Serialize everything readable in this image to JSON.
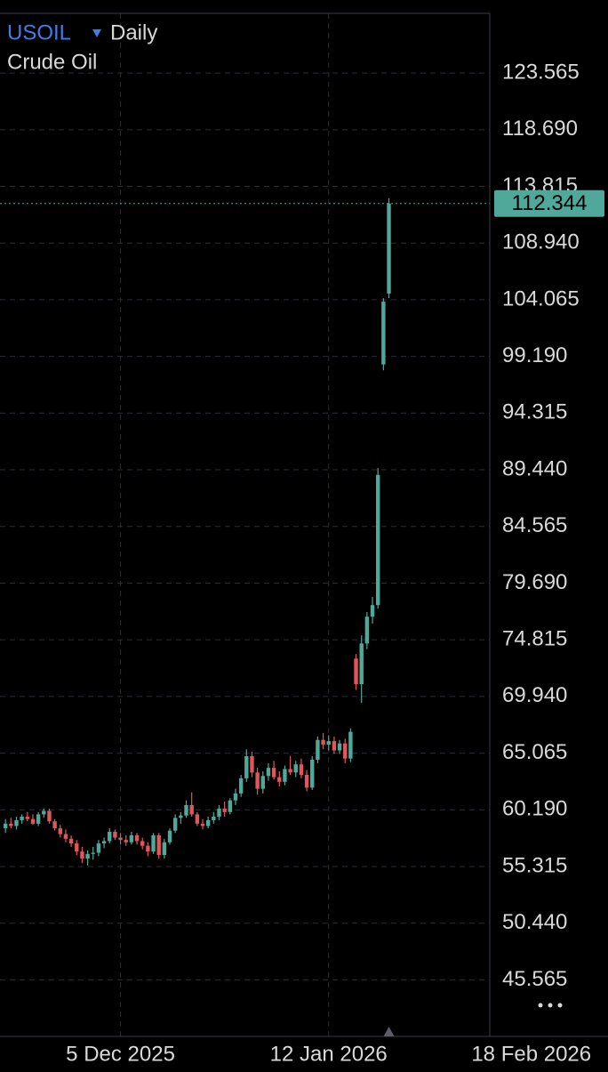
{
  "chart_data": {
    "type": "candlestick",
    "symbol": "USOIL",
    "interval": "Daily",
    "title": "Crude Oil",
    "x": [
      "2025-11-14",
      "2025-11-15",
      "2025-11-16",
      "2025-11-17",
      "2025-11-18",
      "2025-11-19",
      "2025-11-20",
      "2025-11-21",
      "2025-11-22",
      "2025-11-23",
      "2025-11-24",
      "2025-11-25",
      "2025-11-26",
      "2025-11-27",
      "2025-11-28",
      "2025-11-29",
      "2025-11-30",
      "2025-12-01",
      "2025-12-02",
      "2025-12-03",
      "2025-12-04",
      "2025-12-05",
      "2025-12-06",
      "2025-12-07",
      "2025-12-08",
      "2025-12-09",
      "2025-12-10",
      "2025-12-11",
      "2025-12-12",
      "2025-12-13",
      "2025-12-14",
      "2025-12-15",
      "2025-12-16",
      "2025-12-17",
      "2025-12-18",
      "2025-12-19",
      "2025-12-20",
      "2025-12-21",
      "2025-12-22",
      "2025-12-23",
      "2025-12-24",
      "2025-12-25",
      "2025-12-26",
      "2025-12-27",
      "2025-12-28",
      "2025-12-29",
      "2025-12-30",
      "2025-12-31",
      "2026-01-01",
      "2026-01-02",
      "2026-01-03",
      "2026-01-04",
      "2026-01-05",
      "2026-01-06",
      "2026-01-07",
      "2026-01-08",
      "2026-01-09",
      "2026-01-10",
      "2026-01-11",
      "2026-01-12",
      "2026-01-13",
      "2026-01-14",
      "2026-01-15",
      "2026-01-16",
      "2026-01-17",
      "2026-01-18",
      "2026-01-19",
      "2026-01-20",
      "2026-01-21",
      "2026-01-22",
      "2026-01-23"
    ],
    "open": [
      58.6,
      59.0,
      58.8,
      59.3,
      59.6,
      59.4,
      59.0,
      59.8,
      60.1,
      59.2,
      58.6,
      58.1,
      57.7,
      57.3,
      56.6,
      56.0,
      56.4,
      56.5,
      57.3,
      57.5,
      58.3,
      57.8,
      57.6,
      57.4,
      58.0,
      57.5,
      57.1,
      56.6,
      58.0,
      56.3,
      57.4,
      58.4,
      59.5,
      59.7,
      60.6,
      59.8,
      59.0,
      58.8,
      59.3,
      59.6,
      60.3,
      60.0,
      61.0,
      61.6,
      62.9,
      64.8,
      63.4,
      62.0,
      63.1,
      63.8,
      63.0,
      62.6,
      63.7,
      63.4,
      64.1,
      63.2,
      62.1,
      64.5,
      66.2,
      65.8,
      66.1,
      65.3,
      65.9,
      64.6,
      73.2,
      71.0,
      74.5,
      76.8,
      77.8,
      98.5,
      104.6
    ],
    "high": [
      59.4,
      59.5,
      59.6,
      59.8,
      60.0,
      59.8,
      60.0,
      60.3,
      60.3,
      59.4,
      58.9,
      58.5,
      58.0,
      57.6,
      57.0,
      56.7,
      57.0,
      57.6,
      57.8,
      58.6,
      58.5,
      58.2,
      58.0,
      58.3,
      58.2,
      57.8,
      57.4,
      58.2,
      58.2,
      57.7,
      58.6,
      59.8,
      60.0,
      61.0,
      61.7,
      60.0,
      59.4,
      59.6,
      60.0,
      60.6,
      60.9,
      61.2,
      62.0,
      63.2,
      65.4,
      65.2,
      63.8,
      63.5,
      64.2,
      64.4,
      63.5,
      64.0,
      64.8,
      64.4,
      64.6,
      63.6,
      64.8,
      66.5,
      66.8,
      66.6,
      66.5,
      66.2,
      66.3,
      67.2,
      73.6,
      75.2,
      77.2,
      78.5,
      89.6,
      104.2,
      112.8
    ],
    "low": [
      58.2,
      58.6,
      58.5,
      59.0,
      59.2,
      58.9,
      58.8,
      59.5,
      59.0,
      58.4,
      57.8,
      57.4,
      57.0,
      56.3,
      55.6,
      55.4,
      55.9,
      56.2,
      56.9,
      57.3,
      57.6,
      57.2,
      57.1,
      57.2,
      57.2,
      56.8,
      56.2,
      56.4,
      56.0,
      56.0,
      57.2,
      58.2,
      59.0,
      59.5,
      59.6,
      58.8,
      58.5,
      58.6,
      59.0,
      59.3,
      59.6,
      59.8,
      60.6,
      61.3,
      62.6,
      63.0,
      61.5,
      61.6,
      62.7,
      62.8,
      62.2,
      62.3,
      63.2,
      63.0,
      62.9,
      61.8,
      61.9,
      64.2,
      65.4,
      65.3,
      65.0,
      65.0,
      64.2,
      64.3,
      70.5,
      69.4,
      74.0,
      76.2,
      77.5,
      98.0,
      104.2
    ],
    "close": [
      59.0,
      58.8,
      59.3,
      59.6,
      59.4,
      59.0,
      59.8,
      60.1,
      59.2,
      58.6,
      58.1,
      57.7,
      57.3,
      56.6,
      56.0,
      56.4,
      56.5,
      57.3,
      57.5,
      58.3,
      57.8,
      57.6,
      57.4,
      58.0,
      57.5,
      57.1,
      56.6,
      58.0,
      56.3,
      57.4,
      58.4,
      59.5,
      59.7,
      60.6,
      59.8,
      59.0,
      58.8,
      59.3,
      59.6,
      60.3,
      60.0,
      61.0,
      61.6,
      62.9,
      64.8,
      63.4,
      62.0,
      63.1,
      63.8,
      63.0,
      62.6,
      63.7,
      63.4,
      64.1,
      63.2,
      62.1,
      64.5,
      66.2,
      65.8,
      66.1,
      65.3,
      65.9,
      64.6,
      66.9,
      71.0,
      74.5,
      76.8,
      77.8,
      89.0,
      103.9,
      112.344
    ],
    "up_color": "#4fa89a",
    "down_color": "#e0565b",
    "grid": true,
    "xlim": [
      "2025-11-13",
      "2026-03-04"
    ],
    "xticks": [
      {
        "value": "2025-12-05",
        "label": "5 Dec 2025"
      },
      {
        "value": "2026-01-12",
        "label": "12 Jan 2026"
      },
      {
        "value": "2026-02-18",
        "label": "18 Feb 2026"
      }
    ],
    "ylim": [
      40.7,
      128.7
    ],
    "yticks": [
      45.565,
      {
        "value": 50.44,
        "label": "50.440"
      },
      55.315,
      {
        "value": 60.19,
        "label": "60.190"
      },
      65.065,
      {
        "value": 69.94,
        "label": "69.940"
      },
      74.815,
      {
        "value": 79.69,
        "label": "79.690"
      },
      84.565,
      {
        "value": 89.44,
        "label": "89.440"
      },
      94.315,
      {
        "value": 99.19,
        "label": "99.190"
      },
      104.065,
      {
        "value": 108.94,
        "label": "108.940"
      },
      113.815,
      {
        "value": 118.69,
        "label": "118.690"
      },
      123.565
    ]
  }
}
